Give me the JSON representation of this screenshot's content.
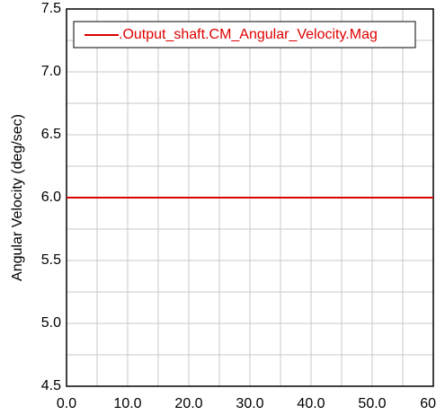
{
  "chart_data": {
    "type": "line",
    "y_label": "Angular Velocity (deg/sec)",
    "x": [
      0,
      60
    ],
    "series": [
      {
        "name": ".Output_shaft.CM_Angular_Velocity.Mag",
        "color": "#dd0000",
        "values": [
          6,
          6
        ]
      }
    ],
    "xlim": [
      0,
      60
    ],
    "xticks": [
      {
        "value": 0,
        "label": "0.0"
      },
      {
        "value": 10,
        "label": "10.0"
      },
      {
        "value": 20,
        "label": "20.0"
      },
      {
        "value": 30,
        "label": "30.0"
      },
      {
        "value": 40,
        "label": "40.0"
      },
      {
        "value": 50,
        "label": "50.0"
      },
      60
    ],
    "ylim": [
      4.5,
      7.5
    ],
    "yticks": [
      4.5,
      {
        "value": 5,
        "label": "5.0"
      },
      5.5,
      {
        "value": 6,
        "label": "6.0"
      },
      6.5,
      {
        "value": 7,
        "label": "7.0"
      },
      7.5
    ],
    "grid": true,
    "legend": "top-left"
  }
}
